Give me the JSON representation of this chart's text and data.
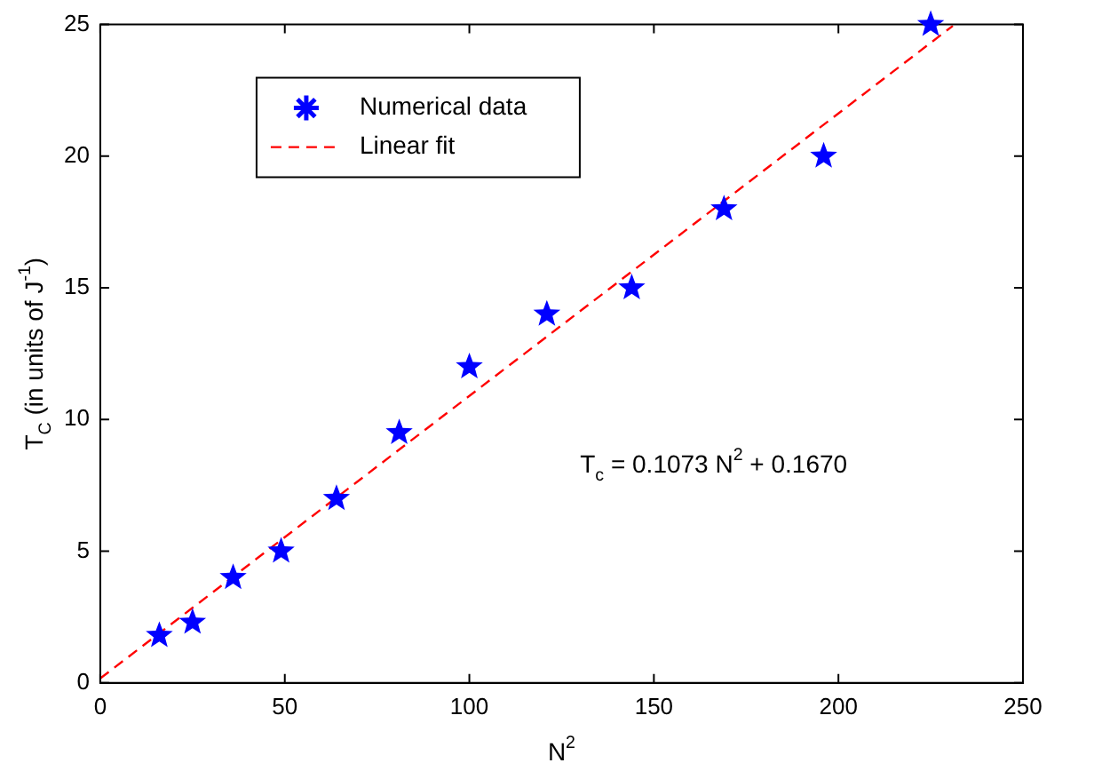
{
  "chart_data": {
    "type": "scatter",
    "xlabel": "N$^{2}$",
    "ylabel": "T$_{C}$ (in units of J$^{-1}$)",
    "xlim": [
      0,
      250
    ],
    "xticks": [
      0,
      50,
      100,
      150,
      200,
      250
    ],
    "ylim": [
      0,
      25
    ],
    "yticks": [
      0,
      5,
      10,
      15,
      20,
      25
    ],
    "grid": false,
    "legend": "top left",
    "series": [
      {
        "name": "Numerical data",
        "type": "scatter",
        "color": "#0000ff",
        "marker": "star",
        "x": [
          16,
          25,
          36,
          49,
          64,
          81,
          100,
          121,
          144,
          169,
          196,
          225
        ],
        "values": [
          1.8,
          2.3,
          4.0,
          5.0,
          7.0,
          9.5,
          12.0,
          14.0,
          15.0,
          18.0,
          20.0,
          25.0
        ]
      },
      {
        "name": "Linear fit",
        "type": "line",
        "color": "#ff0000",
        "marker": "none",
        "line_style": "dashed",
        "x": [
          0,
          231
        ],
        "values": [
          0.17,
          24.95
        ]
      }
    ],
    "annotations": [
      "T$_{c}$ = 0.1073 N$^{2}$ + 0.1670"
    ]
  }
}
